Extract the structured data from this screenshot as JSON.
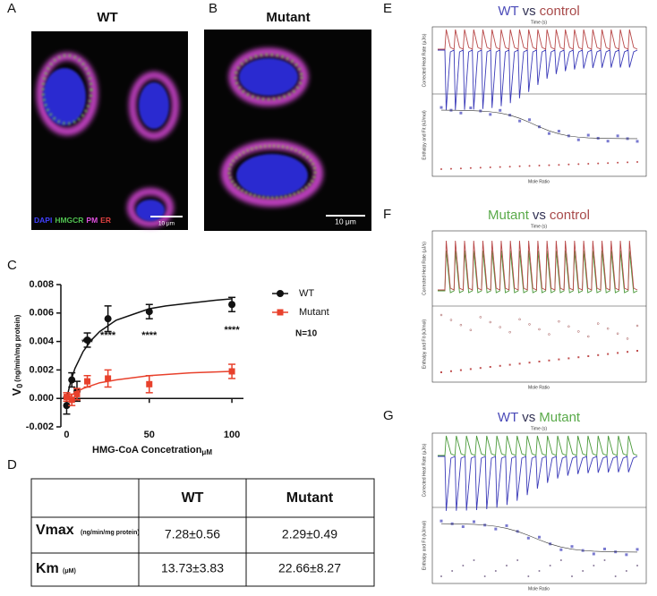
{
  "panel_labels": [
    "A",
    "B",
    "C",
    "D",
    "E",
    "F",
    "G"
  ],
  "images": [
    {
      "title": "WT",
      "legend": [
        {
          "text": "DAPI",
          "color": "#4040ff"
        },
        {
          "text": "HMGCR",
          "color": "#50c050"
        },
        {
          "text": "PM",
          "color": "#e050e0"
        },
        {
          "text": "ER",
          "color": "#e04040"
        }
      ],
      "scale_bar": "10 μm"
    },
    {
      "title": "Mutant",
      "scale_bar": "10 μm"
    }
  ],
  "chart_data": {
    "type": "scatter",
    "x_label": "HMG-CoA Concetration",
    "x_label_unit": "μM",
    "y_label": "V",
    "y_label_sub": "0",
    "y_label_unit": "(ng/min/mg protein)",
    "xlim": [
      -3.5,
      107
    ],
    "xticks": [
      0,
      50,
      100
    ],
    "ylim": [
      -0.002,
      0.008
    ],
    "yticks": [
      {
        "value": -0.002,
        "label": "-0.002"
      },
      {
        "value": 0,
        "label": "0.000"
      },
      {
        "value": 0.002,
        "label": "0.002"
      },
      {
        "value": 0.004,
        "label": "0.004"
      },
      {
        "value": 0.006,
        "label": "0.006"
      },
      {
        "value": 0.008,
        "label": "0.008"
      }
    ],
    "series": [
      {
        "name": "WT",
        "color": "#111111",
        "marker": "circle",
        "x": [
          0,
          3.125,
          6.25,
          12.5,
          25,
          50,
          100
        ],
        "values": [
          -0.0005,
          0.0013,
          0.0005,
          0.0041,
          0.0056,
          0.0061,
          0.0066
        ],
        "errors": [
          0.0006,
          0.0005,
          0.0007,
          0.0005,
          0.0009,
          0.0005,
          0.0005
        ],
        "fit_x": [
          0,
          2.5,
          5,
          10,
          15,
          20,
          30,
          40,
          50,
          60,
          75,
          90,
          100
        ],
        "fit_values": [
          0,
          0.0012,
          0.0021,
          0.0033,
          0.0041,
          0.0047,
          0.0055,
          0.0059,
          0.0063,
          0.0065,
          0.0067,
          0.0069,
          0.007
        ]
      },
      {
        "name": "Mutant",
        "color": "#e8412c",
        "marker": "square",
        "x": [
          0,
          3.125,
          6.25,
          12.5,
          25,
          50,
          100
        ],
        "values": [
          0.0001,
          -0.0001,
          0.0003,
          0.0012,
          0.0014,
          0.001,
          0.0019
        ],
        "errors": [
          0.0003,
          0.0004,
          0.0004,
          0.0004,
          0.0006,
          0.0006,
          0.0005
        ],
        "fit_x": [
          0,
          5,
          10,
          20,
          30,
          50,
          75,
          100
        ],
        "fit_values": [
          0,
          0.0004,
          0.0007,
          0.0011,
          0.0013,
          0.0016,
          0.0018,
          0.0019
        ]
      }
    ],
    "annotations": [
      {
        "x": 12.5,
        "y": 0.0039,
        "text": "***"
      },
      {
        "x": 25,
        "y": 0.0044,
        "text": "****"
      },
      {
        "x": 50,
        "y": 0.0044,
        "text": "****"
      },
      {
        "x": 100,
        "y": 0.0048,
        "text": "****"
      }
    ],
    "legend_note": "N=10"
  },
  "table": {
    "header": [
      "WT",
      "Mutant"
    ],
    "rows": [
      {
        "name": "Vmax",
        "unit": "(ng/min/mg protein)",
        "cells": [
          "7.28±0.56",
          "2.29±0.49"
        ]
      },
      {
        "name": "Km",
        "unit": "(μM)",
        "cells": [
          "13.73±3.83",
          "22.66±8.27"
        ]
      }
    ]
  },
  "itc": [
    {
      "title": [
        {
          "text": "WT",
          "color": "#4a4ab8"
        },
        {
          "text": "vs",
          "color": "#333355"
        },
        {
          "text": "control",
          "color": "#a84a4a"
        }
      ],
      "up_color": "#b84848",
      "down_color": "#3a3ab8",
      "x_top": "Time (s)",
      "x_bottom": "Mole Ratio",
      "y_top": "Corrected Heat Rate (μJ/s)",
      "y_bottom": "Enthalpy and Fit (kJ/mol)"
    },
    {
      "title": [
        {
          "text": "Mutant",
          "color": "#5aaa4a"
        },
        {
          "text": "vs",
          "color": "#333355"
        },
        {
          "text": "control",
          "color": "#a84a4a"
        }
      ],
      "up_color": "#b84848",
      "down_color": "#4a9a3a",
      "x_top": "Time (s)",
      "x_bottom": "Mole Ratio",
      "y_top": "Corrected Heat Rate (μJ/s)",
      "y_bottom": "Enthalpy and Fit (kJ/mol)"
    },
    {
      "title": [
        {
          "text": "WT",
          "color": "#4a4ab8"
        },
        {
          "text": "vs",
          "color": "#333355"
        },
        {
          "text": "Mutant",
          "color": "#5aaa4a"
        }
      ],
      "up_color": "#4a9a3a",
      "down_color": "#3a3ab8",
      "x_top": "Time (s)",
      "x_bottom": "Mole Ratio",
      "y_top": "Corrected Heat Rate (μJ/s)",
      "y_bottom": "Enthalpy and Fit (kJ/mol)"
    }
  ]
}
